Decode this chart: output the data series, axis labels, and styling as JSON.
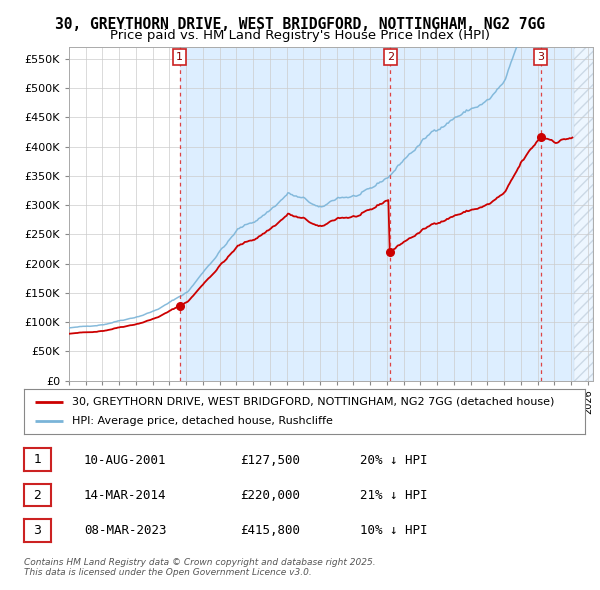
{
  "title": "30, GREYTHORN DRIVE, WEST BRIDGFORD, NOTTINGHAM, NG2 7GG",
  "subtitle": "Price paid vs. HM Land Registry's House Price Index (HPI)",
  "ylim": [
    0,
    570000
  ],
  "yticks": [
    0,
    50000,
    100000,
    150000,
    200000,
    250000,
    300000,
    350000,
    400000,
    450000,
    500000,
    550000
  ],
  "xlim_start": 1995.0,
  "xlim_end": 2026.3,
  "title_fontsize": 10.5,
  "subtitle_fontsize": 9.5,
  "sale_dates_num": [
    2001.608,
    2014.203,
    2023.181
  ],
  "sale_prices": [
    127500,
    220000,
    415800
  ],
  "sale_labels": [
    "1",
    "2",
    "3"
  ],
  "vline_color": "#dd4444",
  "hpi_line_color": "#7ab4d8",
  "price_line_color": "#cc0000",
  "shade_color": "#ddeeff",
  "hatch_color": "#ccddee",
  "legend_entries": [
    "30, GREYTHORN DRIVE, WEST BRIDGFORD, NOTTINGHAM, NG2 7GG (detached house)",
    "HPI: Average price, detached house, Rushcliffe"
  ],
  "table_rows": [
    [
      "1",
      "10-AUG-2001",
      "£127,500",
      "20% ↓ HPI"
    ],
    [
      "2",
      "14-MAR-2014",
      "£220,000",
      "21% ↓ HPI"
    ],
    [
      "3",
      "08-MAR-2023",
      "£415,800",
      "10% ↓ HPI"
    ]
  ],
  "footnote": "Contains HM Land Registry data © Crown copyright and database right 2025.\nThis data is licensed under the Open Government Licence v3.0.",
  "background_color": "#ffffff",
  "grid_color": "#cccccc"
}
